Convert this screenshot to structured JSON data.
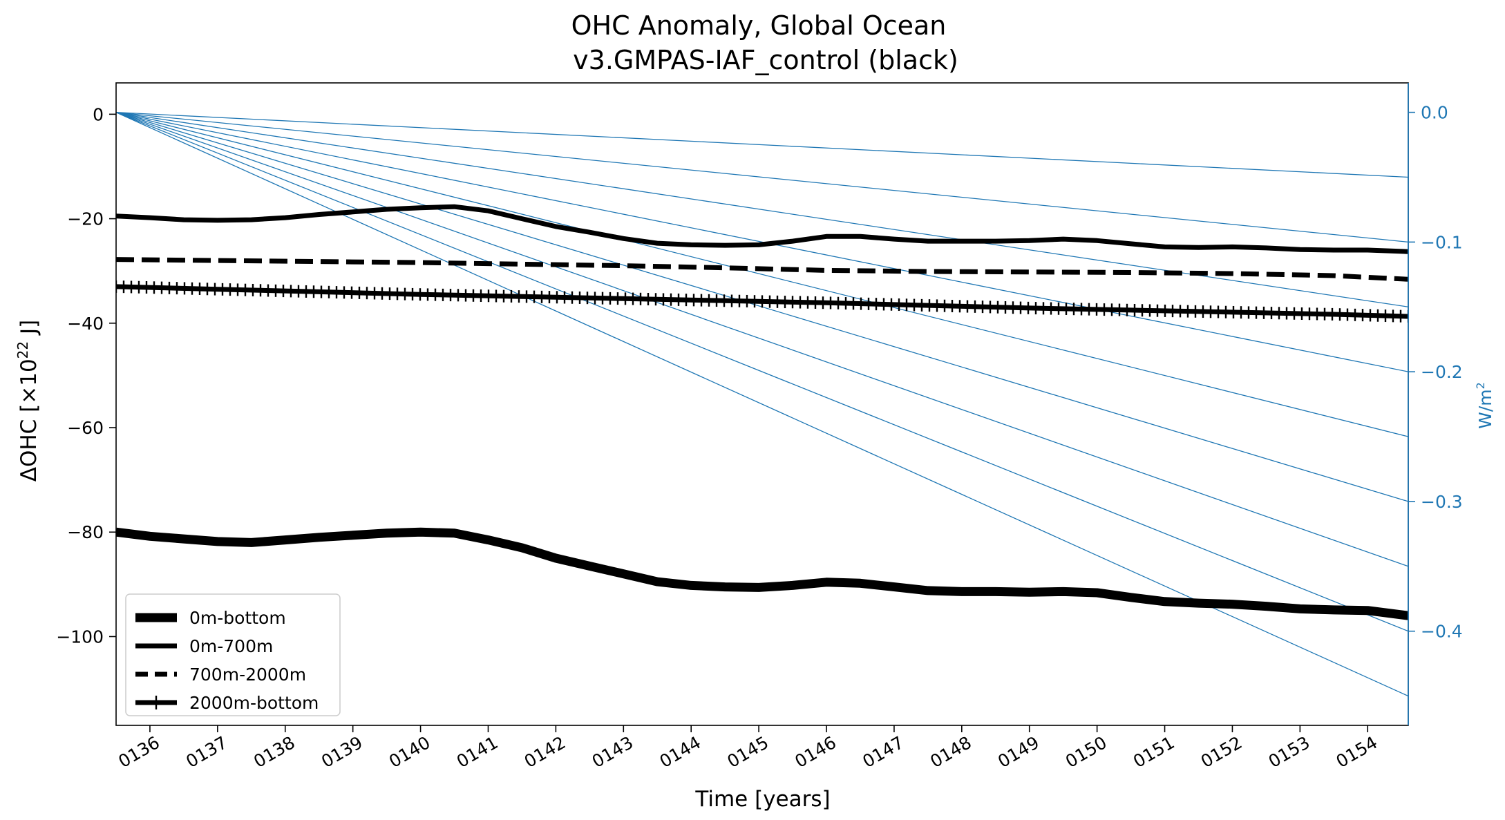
{
  "chart_data": {
    "type": "line",
    "title_line1": "OHC Anomaly, Global Ocean",
    "title_line2": "v3.GMPAS-IAF_control (black)",
    "xlabel": "Time [years]",
    "ylabel": "ΔOHC [×10²² J]",
    "ylabel_parts": {
      "main": "ΔOHC [×10",
      "sup": "22",
      "unit": " J]"
    },
    "y2label_parts": {
      "main": "W/m",
      "sup": "2"
    },
    "xlim": [
      135.5,
      154.6
    ],
    "ylim": [
      -117,
      6
    ],
    "y2lim": [
      -0.4726,
      0.0227
    ],
    "x_ticks": [
      136,
      137,
      138,
      139,
      140,
      141,
      142,
      143,
      144,
      145,
      146,
      147,
      148,
      149,
      150,
      151,
      152,
      153,
      154
    ],
    "x_tick_labels": [
      "0136",
      "0137",
      "0138",
      "0139",
      "0140",
      "0141",
      "0142",
      "0143",
      "0144",
      "0145",
      "0146",
      "0147",
      "0148",
      "0149",
      "0150",
      "0151",
      "0152",
      "0153",
      "0154"
    ],
    "y_ticks": [
      0,
      -20,
      -40,
      -60,
      -80,
      -100
    ],
    "y_tick_labels": [
      "0",
      "−20",
      "−40",
      "−60",
      "−80",
      "−100"
    ],
    "y2_ticks": [
      0.0,
      -0.1,
      -0.2,
      -0.3,
      -0.4
    ],
    "y2_tick_labels": [
      "0.0",
      "−0.1",
      "−0.2",
      "−0.3",
      "−0.4"
    ],
    "reference_lines": {
      "color": "#1f77b4",
      "origin_x": 135.5,
      "rates_w_m2": [
        -0.05,
        -0.1,
        -0.15,
        -0.2,
        -0.25,
        -0.3,
        -0.35,
        -0.4,
        -0.45
      ]
    },
    "series": [
      {
        "name": "0m-bottom",
        "style": "thick",
        "x": [
          135.5,
          136.0,
          136.5,
          137.0,
          137.5,
          138.0,
          138.5,
          139.0,
          139.5,
          140.0,
          140.5,
          141.0,
          141.5,
          142.0,
          142.5,
          143.0,
          143.5,
          144.0,
          144.5,
          145.0,
          145.5,
          146.0,
          146.5,
          147.0,
          147.5,
          148.0,
          148.5,
          149.0,
          149.5,
          150.0,
          150.5,
          151.0,
          151.5,
          152.0,
          152.5,
          153.0,
          153.5,
          154.0,
          154.6
        ],
        "values": [
          -80.0,
          -80.8,
          -81.3,
          -81.8,
          -82.0,
          -81.5,
          -81.0,
          -80.6,
          -80.2,
          -80.0,
          -80.2,
          -81.5,
          -83.0,
          -85.0,
          -86.5,
          -88.0,
          -89.5,
          -90.2,
          -90.5,
          -90.6,
          -90.2,
          -89.6,
          -89.8,
          -90.5,
          -91.2,
          -91.4,
          -91.4,
          -91.5,
          -91.4,
          -91.6,
          -92.5,
          -93.3,
          -93.6,
          -93.8,
          -94.2,
          -94.7,
          -94.9,
          -95.0,
          -96.0
        ]
      },
      {
        "name": "0m-700m",
        "style": "solid",
        "x": [
          135.5,
          136.0,
          136.5,
          137.0,
          137.5,
          138.0,
          138.5,
          139.0,
          139.5,
          140.0,
          140.5,
          141.0,
          141.5,
          142.0,
          142.5,
          143.0,
          143.5,
          144.0,
          144.5,
          145.0,
          145.5,
          146.0,
          146.5,
          147.0,
          147.5,
          148.0,
          148.5,
          149.0,
          149.5,
          150.0,
          150.5,
          151.0,
          151.5,
          152.0,
          152.5,
          153.0,
          153.5,
          154.0,
          154.6
        ],
        "values": [
          -19.5,
          -19.8,
          -20.2,
          -20.3,
          -20.2,
          -19.8,
          -19.2,
          -18.7,
          -18.2,
          -17.9,
          -17.7,
          -18.5,
          -20.0,
          -21.5,
          -22.6,
          -23.8,
          -24.7,
          -25.0,
          -25.1,
          -25.0,
          -24.3,
          -23.4,
          -23.4,
          -23.9,
          -24.3,
          -24.3,
          -24.3,
          -24.2,
          -23.9,
          -24.2,
          -24.8,
          -25.4,
          -25.5,
          -25.4,
          -25.6,
          -25.9,
          -26.0,
          -26.0,
          -26.3
        ]
      },
      {
        "name": "700m-2000m",
        "style": "dashed",
        "x": [
          135.5,
          137.0,
          138.5,
          140.0,
          141.5,
          143.0,
          144.5,
          146.0,
          147.5,
          149.0,
          150.5,
          152.0,
          153.5,
          154.6
        ],
        "values": [
          -27.8,
          -28.0,
          -28.2,
          -28.4,
          -28.7,
          -29.0,
          -29.4,
          -29.9,
          -30.1,
          -30.2,
          -30.3,
          -30.5,
          -30.9,
          -31.6
        ]
      },
      {
        "name": "2000m-bottom",
        "style": "plus-markers",
        "x": [
          135.5,
          137.0,
          138.5,
          140.0,
          141.5,
          143.0,
          144.5,
          146.0,
          147.5,
          149.0,
          150.5,
          152.0,
          153.5,
          154.6
        ],
        "values": [
          -33.0,
          -33.5,
          -34.0,
          -34.5,
          -34.9,
          -35.3,
          -35.7,
          -36.1,
          -36.6,
          -37.1,
          -37.5,
          -37.9,
          -38.3,
          -38.7
        ]
      }
    ],
    "legend": {
      "position": "lower-left",
      "entries": [
        "0m-bottom",
        "0m-700m",
        "700m-2000m",
        "2000m-bottom"
      ]
    }
  }
}
